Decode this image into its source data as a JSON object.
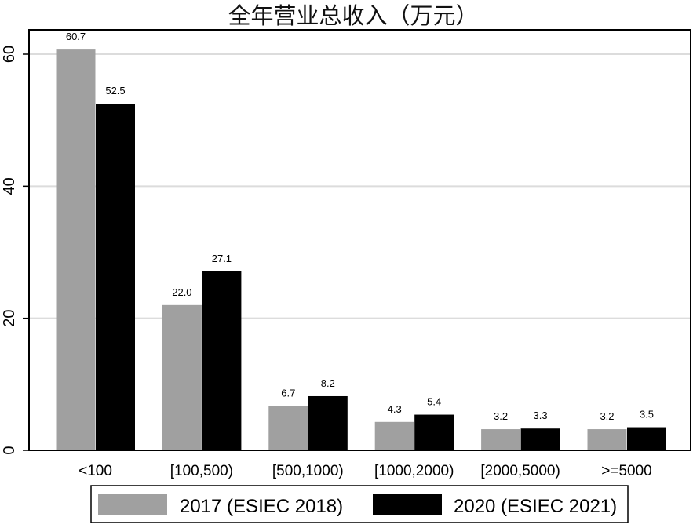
{
  "chart_data": {
    "type": "bar",
    "title": "全年营业总收入（万元）",
    "xlabel": "",
    "ylabel": "",
    "categories": [
      "<100",
      "[100,500)",
      "[500,1000)",
      "[1000,2000)",
      "[2000,5000)",
      ">=5000"
    ],
    "series": [
      {
        "name": "2017 (ESIEC 2018)",
        "color": "#a0a0a0",
        "values": [
          60.7,
          22.0,
          6.7,
          4.3,
          3.2,
          3.2
        ],
        "labels": [
          "60.7",
          "22.0",
          "6.7",
          "4.3",
          "3.2",
          "3.2"
        ]
      },
      {
        "name": "2020 (ESIEC 2021)",
        "color": "#000000",
        "values": [
          52.5,
          27.1,
          8.2,
          5.4,
          3.3,
          3.5
        ],
        "labels": [
          "52.5",
          "27.1",
          "8.2",
          "5.4",
          "3.3",
          "3.5"
        ]
      }
    ],
    "ylim": [
      0,
      63.7
    ],
    "yticks": [
      0,
      20,
      40,
      60
    ],
    "ytick_labels": [
      "0",
      "20",
      "40",
      "60"
    ],
    "grid": true,
    "legend_position": "bottom"
  }
}
